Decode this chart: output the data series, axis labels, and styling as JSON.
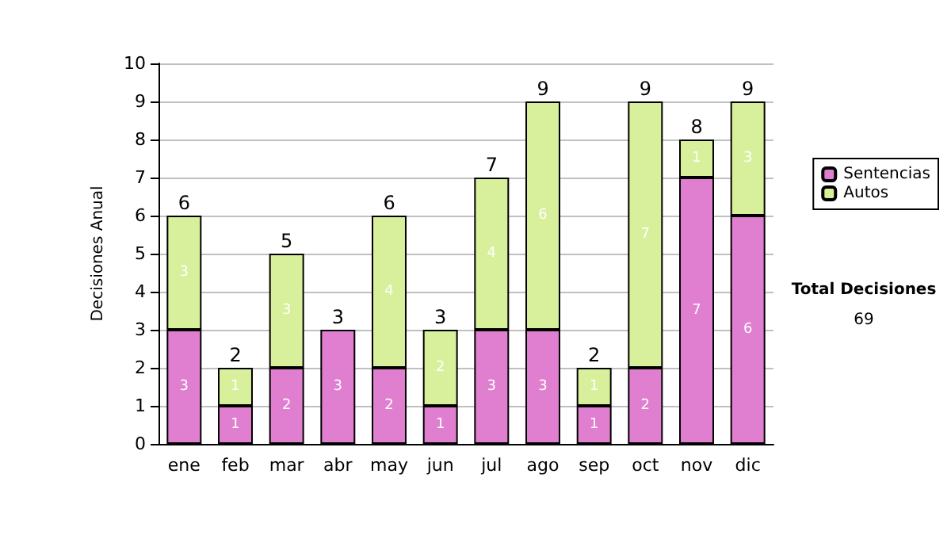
{
  "chart_data": {
    "type": "bar",
    "stacked": true,
    "ylabel": "Decisiones Anual",
    "categories": [
      "ene",
      "feb",
      "mar",
      "abr",
      "may",
      "jun",
      "jul",
      "ago",
      "sep",
      "oct",
      "nov",
      "dic"
    ],
    "series": [
      {
        "name": "Sentencias",
        "color": "#e07fcf",
        "values": [
          3,
          1,
          2,
          3,
          2,
          1,
          3,
          3,
          1,
          2,
          7,
          6
        ],
        "value_labels": [
          "3",
          "1",
          "2",
          "3",
          "2",
          "1",
          "3",
          "3",
          "1",
          "2",
          "7",
          "6"
        ]
      },
      {
        "name": "Autos",
        "color": "#d8f09b",
        "values": [
          3,
          1,
          3,
          null,
          4,
          2,
          4,
          6,
          1,
          7,
          1,
          3
        ],
        "value_labels": [
          "3",
          "1",
          "3",
          null,
          "4",
          "2",
          "4",
          "6",
          "1",
          "7",
          "1",
          "3"
        ]
      }
    ],
    "totals": [
      "6",
      "2",
      "5",
      "3",
      "6",
      "3",
      "7",
      "9",
      "2",
      "9",
      "8",
      "9"
    ],
    "ylim": [
      0,
      10
    ],
    "yticks": [
      0,
      1,
      2,
      3,
      4,
      5,
      6,
      7,
      8,
      9,
      10
    ],
    "grid": "y",
    "legend": "right",
    "annotations": [
      "Total Decisiones",
      "69"
    ]
  }
}
